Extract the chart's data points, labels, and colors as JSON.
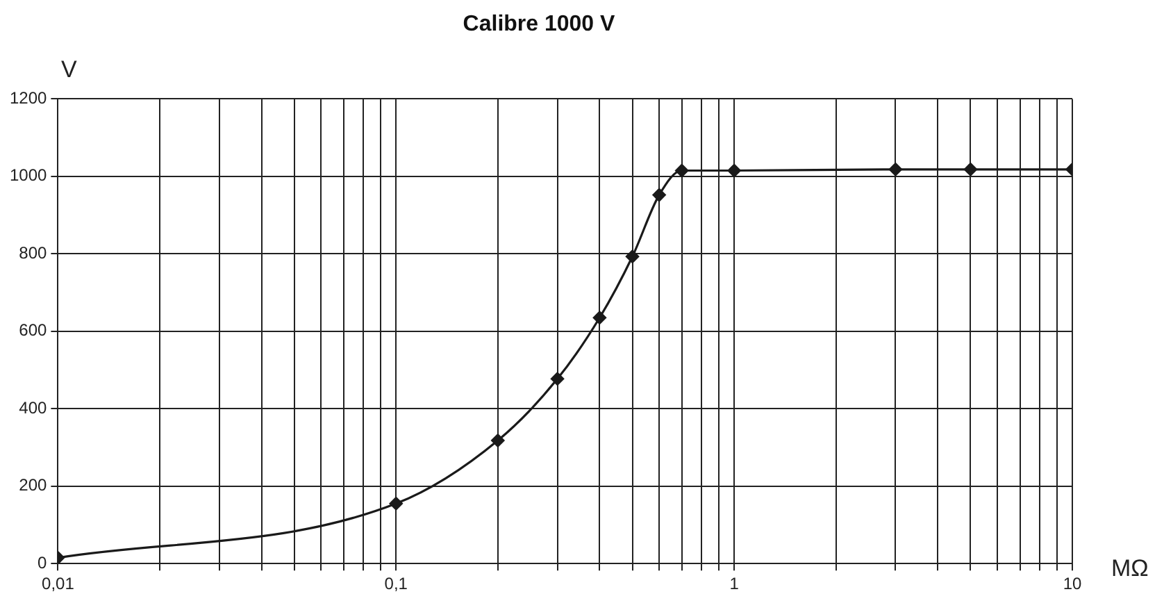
{
  "chart_data": {
    "type": "line",
    "title": "Calibre 1000 V",
    "xlabel": "MΩ",
    "ylabel": "V",
    "log": "x",
    "grid": true,
    "marker": "diamond",
    "line_style": "solid",
    "legend": false,
    "x": [
      0.01,
      0.1,
      0.2,
      0.3,
      0.4,
      0.5,
      0.6,
      0.7,
      1,
      3,
      5,
      10
    ],
    "series": [
      {
        "color": "#1a1a1a",
        "values": [
          15,
          155,
          318,
          477,
          635,
          793,
          952,
          1015,
          1015,
          1018,
          1018,
          1018
        ]
      }
    ],
    "xlim": [
      0.01,
      10
    ],
    "ylim": [
      0,
      1200
    ],
    "xticks": [
      {
        "value": 0.01,
        "label": "0,01"
      },
      {
        "value": 0.02,
        "label": null
      },
      {
        "value": 0.03,
        "label": null
      },
      {
        "value": 0.04,
        "label": null
      },
      {
        "value": 0.05,
        "label": null
      },
      {
        "value": 0.06,
        "label": null
      },
      {
        "value": 0.07,
        "label": null
      },
      {
        "value": 0.08,
        "label": null
      },
      {
        "value": 0.09,
        "label": null
      },
      {
        "value": 0.1,
        "label": "0,1"
      },
      {
        "value": 0.2,
        "label": null
      },
      {
        "value": 0.3,
        "label": null
      },
      {
        "value": 0.4,
        "label": null
      },
      {
        "value": 0.5,
        "label": null
      },
      {
        "value": 0.6,
        "label": null
      },
      {
        "value": 0.7,
        "label": null
      },
      {
        "value": 0.8,
        "label": null
      },
      {
        "value": 0.9,
        "label": null
      },
      {
        "value": 1,
        "label": "1"
      },
      {
        "value": 2,
        "label": null
      },
      {
        "value": 3,
        "label": null
      },
      {
        "value": 4,
        "label": null
      },
      {
        "value": 5,
        "label": null
      },
      {
        "value": 6,
        "label": null
      },
      {
        "value": 7,
        "label": null
      },
      {
        "value": 8,
        "label": null
      },
      {
        "value": 9,
        "label": null
      },
      {
        "value": 10,
        "label": "10"
      }
    ],
    "yticks": [
      0,
      200,
      400,
      600,
      800,
      1000,
      1200
    ]
  }
}
